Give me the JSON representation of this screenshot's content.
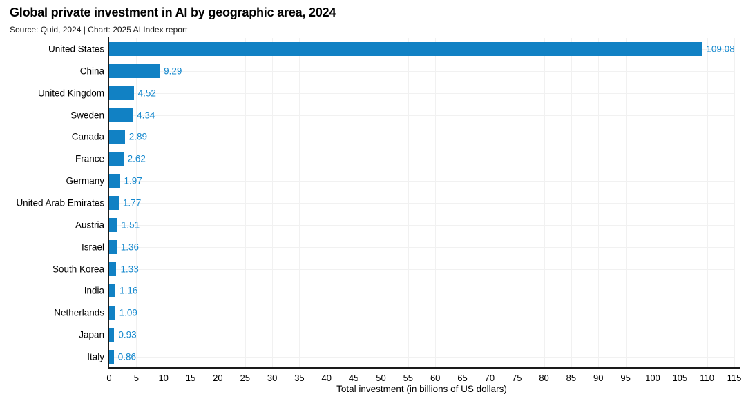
{
  "header": {
    "title": "Global private investment in AI by geographic area, 2024",
    "source": "Source: Quid, 2024 | Chart: 2025 AI Index report"
  },
  "chart_data": {
    "type": "bar",
    "orientation": "horizontal",
    "title": "Global private investment in AI by geographic area, 2024",
    "subtitle": "Source: Quid, 2024 | Chart: 2025 AI Index report",
    "categories": [
      "United States",
      "China",
      "United Kingdom",
      "Sweden",
      "Canada",
      "France",
      "Germany",
      "United Arab Emirates",
      "Austria",
      "Israel",
      "South Korea",
      "India",
      "Netherlands",
      "Japan",
      "Italy"
    ],
    "values": [
      109.08,
      9.29,
      4.52,
      4.34,
      2.89,
      2.62,
      1.97,
      1.77,
      1.51,
      1.36,
      1.33,
      1.16,
      1.09,
      0.93,
      0.86
    ],
    "xlabel": "Total investment (in billions of US dollars)",
    "ylabel": "",
    "xlim": [
      0,
      115
    ],
    "xticks": [
      0,
      5,
      10,
      15,
      20,
      25,
      30,
      35,
      40,
      45,
      50,
      55,
      60,
      65,
      70,
      75,
      80,
      85,
      90,
      95,
      100,
      105,
      110,
      115
    ],
    "grid": true,
    "legend": "none",
    "bar_color": "#1181c4",
    "value_label_color": "#1689ce",
    "axis_color": "#1a1a1a",
    "gridline_color": "#f1f1f1"
  }
}
